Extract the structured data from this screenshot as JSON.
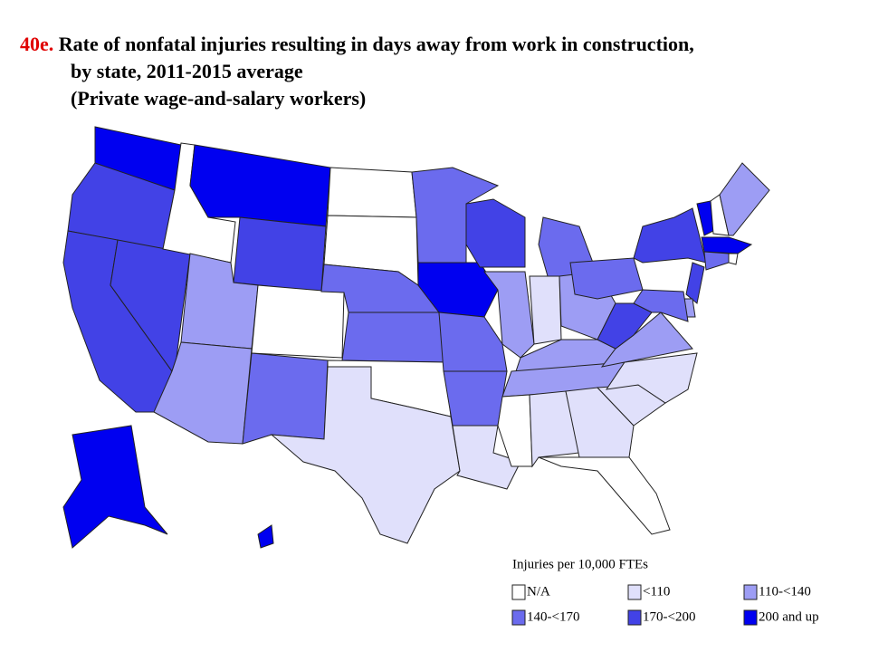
{
  "title": {
    "number": "40e.",
    "lines": [
      "Rate of nonfatal injuries resulting in days away from work in construction,",
      "by state, 2011-2015 average",
      "(Private wage-and-salary workers)"
    ]
  },
  "legend": {
    "title": "Injuries per 10,000 FTEs",
    "classes": [
      {
        "label": "N/A",
        "color": "#ffffff"
      },
      {
        "label": "<110",
        "color": "#e0e0fb"
      },
      {
        "label": "110-<140",
        "color": "#9d9df4"
      },
      {
        "label": "140-<170",
        "color": "#6b6bee"
      },
      {
        "label": "170-<200",
        "color": "#4242e6"
      },
      {
        "label": "200 and up",
        "color": "#0000f0"
      }
    ]
  },
  "regions": [
    5,
    4,
    4,
    4,
    0,
    5,
    4,
    2,
    2,
    0,
    3,
    0,
    0,
    3,
    3,
    0,
    1,
    3,
    5,
    3,
    3,
    1,
    4,
    2,
    3,
    1,
    2,
    2,
    2,
    0,
    1,
    1,
    0,
    1,
    1,
    2,
    4,
    3,
    4,
    5,
    0,
    2,
    5,
    0,
    3,
    4,
    2,
    3,
    5,
    5
  ]
}
